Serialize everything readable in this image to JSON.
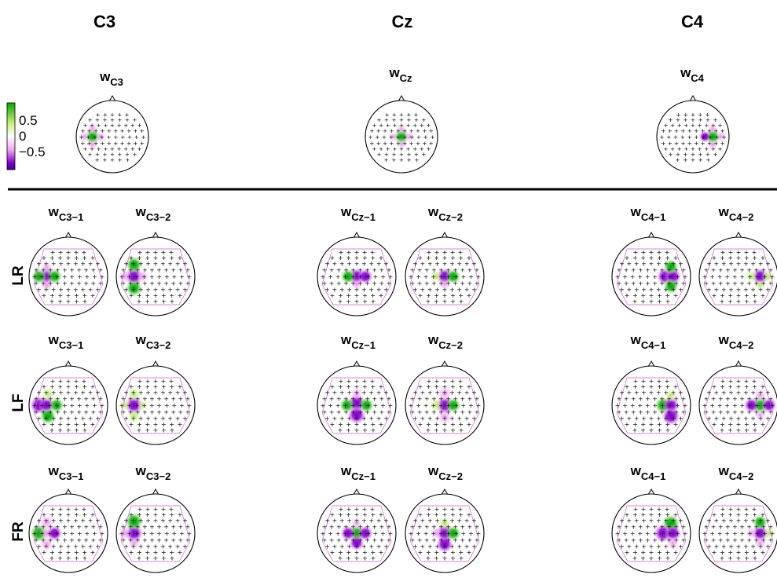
{
  "columns": [
    "C3",
    "Cz",
    "C4"
  ],
  "top_row": {
    "titles": [
      {
        "base": "w",
        "sub": "C3"
      },
      {
        "base": "w",
        "sub": "Cz"
      },
      {
        "base": "w",
        "sub": "C4"
      }
    ]
  },
  "colorbar": {
    "ticks": [
      "0.5",
      "0",
      "−0.5"
    ],
    "colors": [
      "#00a800",
      "#c8f070",
      "#ffffff",
      "#f0a8f0",
      "#8000c8",
      "#4000a0"
    ]
  },
  "rows": [
    {
      "label": "LR",
      "titles": [
        {
          "base": "w",
          "sub": "C3−1"
        },
        {
          "base": "w",
          "sub": "C3−2"
        },
        {
          "base": "w",
          "sub": "Cz−1"
        },
        {
          "base": "w",
          "sub": "Cz−2"
        },
        {
          "base": "w",
          "sub": "C4−1"
        },
        {
          "base": "w",
          "sub": "C4−2"
        }
      ]
    },
    {
      "label": "LF",
      "titles": [
        {
          "base": "w",
          "sub": "C3−1"
        },
        {
          "base": "w",
          "sub": "C3−2"
        },
        {
          "base": "w",
          "sub": "Cz−1"
        },
        {
          "base": "w",
          "sub": "Cz−2"
        },
        {
          "base": "w",
          "sub": "C4−1"
        },
        {
          "base": "w",
          "sub": "C4−2"
        }
      ]
    },
    {
      "label": "FR",
      "titles": [
        {
          "base": "w",
          "sub": "C3−1"
        },
        {
          "base": "w",
          "sub": "C3−2"
        },
        {
          "base": "w",
          "sub": "Cz−1"
        },
        {
          "base": "w",
          "sub": "Cz−2"
        },
        {
          "base": "w",
          "sub": "C4−1"
        },
        {
          "base": "w",
          "sub": "C4−2"
        }
      ]
    }
  ],
  "colors": {
    "positive": "#00b000",
    "positive_light": "#c8f080",
    "negative": "#9000d0",
    "negative_light": "#f0a0f0",
    "electrode": "#000000",
    "contour": "#d060d0"
  }
}
